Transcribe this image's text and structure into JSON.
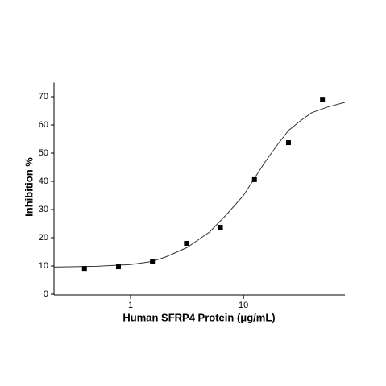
{
  "chart_data": {
    "type": "scatter",
    "x_label": "Human SFRP4 Protein (μg/mL)",
    "y_label": "Inhibition %",
    "x_scale": "log",
    "xlim": [
      0.21,
      79
    ],
    "xticks": [
      1,
      10
    ],
    "ylim": [
      0,
      75
    ],
    "yticks": [
      0,
      10,
      20,
      30,
      40,
      50,
      60,
      70
    ],
    "color": "#000000",
    "x": [
      0.390625,
      0.78125,
      1.5625,
      3.125,
      6.25,
      12.5,
      25,
      50
    ],
    "values": [
      9.1,
      9.7,
      11.7,
      18,
      23.7,
      40.6,
      53.7,
      69.1
    ],
    "curve": {
      "color": "#333333",
      "x": [
        0.21,
        0.5,
        1,
        1.5,
        2,
        3.16,
        5,
        7,
        10,
        15,
        20,
        25,
        32,
        40,
        55,
        79
      ],
      "values": [
        9.6,
        9.9,
        10.5,
        11.5,
        13,
        16.5,
        22,
        28,
        35,
        46,
        53,
        58,
        61.5,
        64.3,
        66.3,
        68
      ]
    }
  }
}
